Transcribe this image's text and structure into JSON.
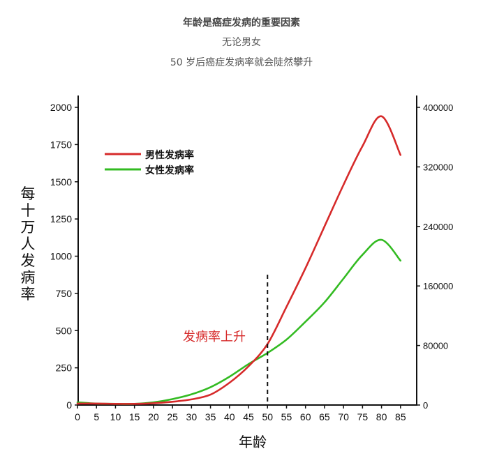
{
  "header": {
    "title": "年龄是癌症发病的重要因素",
    "subtitle_1": "无论男女",
    "subtitle_2": "50 岁后癌症发病率就会陡然攀升"
  },
  "chart_data": {
    "type": "line",
    "xlabel": "年龄",
    "ylabel": "每十万人发病率",
    "x": [
      0,
      5,
      10,
      15,
      20,
      25,
      30,
      35,
      40,
      45,
      50,
      55,
      60,
      65,
      70,
      75,
      80,
      85
    ],
    "xticks": [
      0,
      5,
      10,
      15,
      20,
      25,
      30,
      35,
      40,
      45,
      50,
      55,
      60,
      65,
      70,
      75,
      80,
      85
    ],
    "xlim": [
      0,
      90
    ],
    "ylim": [
      0,
      2000
    ],
    "yticks": [
      0,
      250,
      500,
      750,
      1000,
      1250,
      1500,
      1750,
      2000
    ],
    "y2lim": [
      0,
      400000
    ],
    "y2ticks": [
      0,
      80000,
      160000,
      240000,
      320000,
      400000
    ],
    "series": [
      {
        "name": "男性发病率",
        "color": "#d62a2a",
        "values": [
          10,
          10,
          8,
          8,
          12,
          22,
          38,
          70,
          150,
          260,
          410,
          660,
          920,
          1200,
          1480,
          1740,
          1940,
          1680
        ]
      },
      {
        "name": "女性发病率",
        "color": "#33bb22",
        "values": [
          18,
          10,
          8,
          8,
          18,
          40,
          72,
          120,
          190,
          275,
          350,
          440,
          560,
          690,
          850,
          1010,
          1110,
          970
        ]
      }
    ],
    "legend_position": "top-left",
    "annotation": {
      "text": "发病率上升",
      "x": 50,
      "color": "#d62a2a"
    },
    "grid": false
  }
}
